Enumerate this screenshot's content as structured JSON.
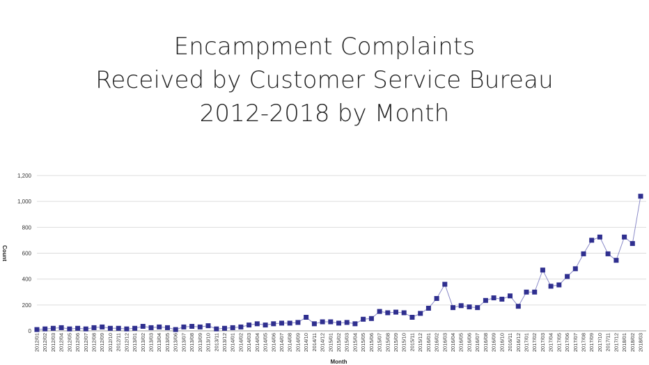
{
  "title": {
    "line1": "Encampment Complaints",
    "line2": "Received by Customer Service Bureau",
    "line3": "2012-2018 by Month"
  },
  "chart_data": {
    "type": "line",
    "xlabel": "Month",
    "ylabel": "Count",
    "ylim": [
      0,
      1200
    ],
    "yticks": [
      0,
      200,
      400,
      600,
      800,
      1000,
      1200
    ],
    "ytick_labels": [
      "0",
      "200",
      "400",
      "600",
      "800",
      "1,000",
      "1,200"
    ],
    "grid": "horizontal",
    "colors": {
      "series": "#2f2f8f",
      "line": "#8a8ac8",
      "grid": "#dcdcdc"
    },
    "categories": [
      "2012/01",
      "2012/02",
      "2012/03",
      "2012/04",
      "2012/05",
      "2012/06",
      "2012/07",
      "2012/08",
      "2012/09",
      "2012/10",
      "2012/11",
      "2012/12",
      "2013/01",
      "2013/02",
      "2013/03",
      "2013/04",
      "2013/05",
      "2013/06",
      "2013/07",
      "2013/08",
      "2013/09",
      "2013/10",
      "2013/11",
      "2013/12",
      "2014/01",
      "2014/02",
      "2014/03",
      "2014/04",
      "2014/05",
      "2014/06",
      "2014/07",
      "2014/08",
      "2014/09",
      "2014/10",
      "2014/11",
      "2014/12",
      "2015/01",
      "2015/02",
      "2015/03",
      "2015/04",
      "2015/05",
      "2015/06",
      "2015/07",
      "2015/08",
      "2015/09",
      "2015/10",
      "2015/11",
      "2015/12",
      "2016/01",
      "2016/02",
      "2016/03",
      "2016/04",
      "2016/05",
      "2016/06",
      "2016/07",
      "2016/08",
      "2016/09",
      "2016/10",
      "2016/11",
      "2016/12",
      "2017/01",
      "2017/02",
      "2017/03",
      "2017/04",
      "2017/05",
      "2017/06",
      "2017/07",
      "2017/08",
      "2017/09",
      "2017/10",
      "2017/11",
      "2017/12",
      "2018/01",
      "2018/02",
      "2018/03"
    ],
    "values": [
      10,
      15,
      20,
      25,
      15,
      20,
      15,
      25,
      30,
      20,
      20,
      15,
      20,
      35,
      25,
      30,
      25,
      10,
      30,
      35,
      30,
      40,
      15,
      20,
      25,
      30,
      45,
      55,
      45,
      55,
      60,
      60,
      65,
      105,
      55,
      70,
      70,
      60,
      65,
      55,
      90,
      95,
      150,
      140,
      145,
      140,
      105,
      135,
      175,
      250,
      360,
      180,
      195,
      185,
      180,
      235,
      255,
      245,
      270,
      190,
      300,
      300,
      470,
      345,
      355,
      420,
      480,
      595,
      700,
      725,
      595,
      545,
      725,
      675,
      1040
    ]
  }
}
